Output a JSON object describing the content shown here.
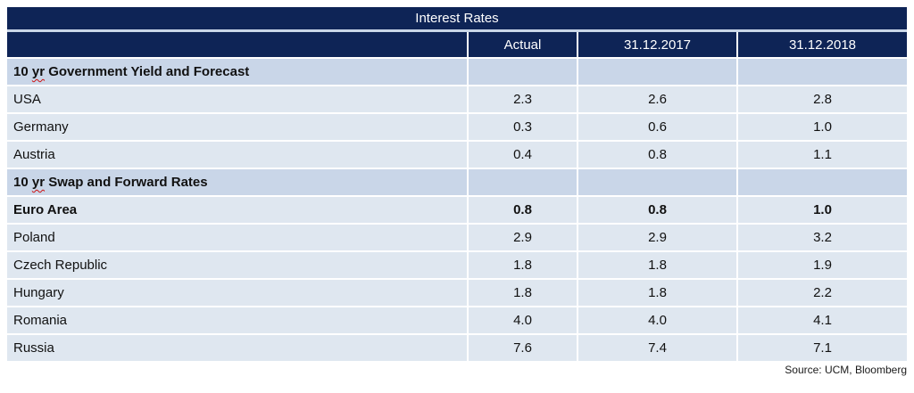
{
  "title": "Interest Rates",
  "columns": [
    "",
    "Actual",
    "31.12.2017",
    "31.12.2018"
  ],
  "rows": [
    {
      "type": "section",
      "label_pre": "10 ",
      "label_misspelled": "yr",
      "label_post": " Government Yield and Forecast",
      "values": [
        "",
        "",
        ""
      ]
    },
    {
      "type": "data",
      "label": "USA",
      "values": [
        "2.3",
        "2.6",
        "2.8"
      ]
    },
    {
      "type": "data",
      "label": "Germany",
      "values": [
        "0.3",
        "0.6",
        "1.0"
      ]
    },
    {
      "type": "data",
      "label": "Austria",
      "values": [
        "0.4",
        "0.8",
        "1.1"
      ]
    },
    {
      "type": "section",
      "label_pre": "10 ",
      "label_misspelled": "yr",
      "label_post": " Swap and Forward Rates",
      "values": [
        "",
        "",
        ""
      ]
    },
    {
      "type": "data",
      "bold": true,
      "label": "Euro Area",
      "values": [
        "0.8",
        "0.8",
        "1.0"
      ]
    },
    {
      "type": "data",
      "label": "Poland",
      "values": [
        "2.9",
        "2.9",
        "3.2"
      ]
    },
    {
      "type": "data",
      "label": "Czech Republic",
      "values": [
        "1.8",
        "1.8",
        "1.9"
      ]
    },
    {
      "type": "data",
      "label": "Hungary",
      "values": [
        "1.8",
        "1.8",
        "2.2"
      ]
    },
    {
      "type": "data",
      "label": "Romania",
      "values": [
        "4.0",
        "4.0",
        "4.1"
      ]
    },
    {
      "type": "data",
      "label": "Russia",
      "values": [
        "7.6",
        "7.4",
        "7.1"
      ]
    }
  ],
  "source": "Source: UCM, Bloomberg",
  "colors": {
    "header_navy": "#0e2456",
    "section_row_bg": "#c9d6e8",
    "data_row_bg": "#dfe7f0",
    "spellcheck_squiggle": "#cc1111",
    "header_text": "#ffffff"
  },
  "chart_data": {
    "type": "table",
    "title": "Interest Rates",
    "columns": [
      "",
      "Actual",
      "31.12.2017",
      "31.12.2018"
    ],
    "sections": [
      {
        "name": "10 yr Government Yield and Forecast",
        "rows": [
          {
            "label": "USA",
            "actual": 2.3,
            "v2017": 2.6,
            "v2018": 2.8
          },
          {
            "label": "Germany",
            "actual": 0.3,
            "v2017": 0.6,
            "v2018": 1.0
          },
          {
            "label": "Austria",
            "actual": 0.4,
            "v2017": 0.8,
            "v2018": 1.1
          }
        ]
      },
      {
        "name": "10 yr Swap and Forward Rates",
        "rows": [
          {
            "label": "Euro Area",
            "actual": 0.8,
            "v2017": 0.8,
            "v2018": 1.0,
            "bold": true
          },
          {
            "label": "Poland",
            "actual": 2.9,
            "v2017": 2.9,
            "v2018": 3.2
          },
          {
            "label": "Czech Republic",
            "actual": 1.8,
            "v2017": 1.8,
            "v2018": 1.9
          },
          {
            "label": "Hungary",
            "actual": 1.8,
            "v2017": 1.8,
            "v2018": 2.2
          },
          {
            "label": "Romania",
            "actual": 4.0,
            "v2017": 4.0,
            "v2018": 4.1
          },
          {
            "label": "Russia",
            "actual": 7.6,
            "v2017": 7.4,
            "v2018": 7.1
          }
        ]
      }
    ],
    "source": "Source: UCM, Bloomberg"
  }
}
